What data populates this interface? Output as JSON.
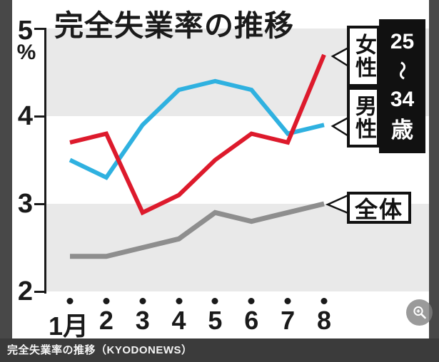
{
  "window": {
    "caption": "完全失業率の推移（KYODONEWS）"
  },
  "chart": {
    "title": "完全失業率の推移",
    "unit_label": "%",
    "ytick_labels": [
      "5",
      "4",
      "3",
      "2"
    ],
    "age_parts": [
      "25",
      "〜",
      "34",
      "歳"
    ],
    "band_color": "#e9e9e9",
    "axis_color": "#1a1a1a"
  },
  "chart_data": {
    "type": "line",
    "title": "完全失業率の推移",
    "categories": [
      "1月",
      "2",
      "3",
      "4",
      "5",
      "6",
      "7",
      "8"
    ],
    "ylabel": "%",
    "ylim": [
      2,
      5
    ],
    "yticks": [
      5,
      4,
      3,
      2
    ],
    "grid": false,
    "shaded_bands": [
      [
        4,
        5
      ],
      [
        2,
        3
      ]
    ],
    "legend_position": "right-callouts",
    "annotation": "25〜34歳",
    "series": [
      {
        "name": "全体",
        "color": "#8e8e8e",
        "stroke_width": 7,
        "values": [
          2.4,
          2.4,
          2.5,
          2.6,
          2.9,
          2.8,
          2.9,
          3.0
        ]
      },
      {
        "name": "男性",
        "color": "#2fb1e0",
        "stroke_width": 6,
        "values": [
          3.5,
          3.3,
          3.9,
          4.3,
          4.4,
          4.3,
          3.8,
          3.9
        ]
      },
      {
        "name": "女性",
        "color": "#dd1a2c",
        "stroke_width": 6,
        "values": [
          3.7,
          3.8,
          2.9,
          3.1,
          3.5,
          3.8,
          3.7,
          4.7
        ]
      }
    ]
  },
  "legend": {
    "women_label": "女性",
    "men_label": "男性",
    "overall_label": "全体"
  }
}
